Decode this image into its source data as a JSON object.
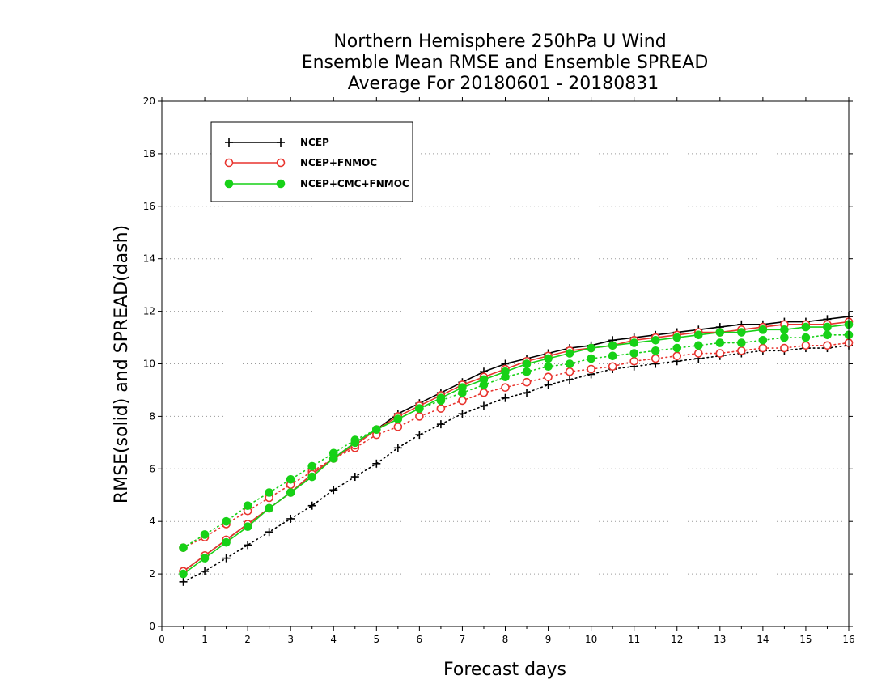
{
  "chart_data": {
    "type": "line",
    "title": [
      "Northern Hemisphere 250hPa U Wind",
      "Ensemble Mean RMSE and Ensemble SPREAD",
      "Average For 20180601 - 20180831"
    ],
    "xlabel": "Forecast days",
    "ylabel": "RMSE(solid) and SPREAD(dash)",
    "xlim": [
      0,
      16
    ],
    "ylim": [
      0,
      20
    ],
    "xticks": [
      "0",
      "1",
      "2",
      "3",
      "4",
      "5",
      "6",
      "7",
      "8",
      "9",
      "10",
      "11",
      "12",
      "13",
      "14",
      "15",
      "16"
    ],
    "yticks": [
      "0",
      "2",
      "4",
      "6",
      "8",
      "10",
      "12",
      "14",
      "16",
      "18",
      "20"
    ],
    "grid": true,
    "legend_position": "top-left",
    "x": [
      0.5,
      1.0,
      1.5,
      2.0,
      2.5,
      3.0,
      3.5,
      4.0,
      4.5,
      5.0,
      5.5,
      6.0,
      6.5,
      7.0,
      7.5,
      8.0,
      8.5,
      9.0,
      9.5,
      10.0,
      10.5,
      11.0,
      11.5,
      12.0,
      12.5,
      13.0,
      13.5,
      14.0,
      14.5,
      15.0,
      15.5,
      16.0
    ],
    "series": [
      {
        "name": "NCEP",
        "color": "#000000",
        "marker": "plus",
        "rmse": [
          2.1,
          2.7,
          3.3,
          3.9,
          4.5,
          5.1,
          5.8,
          6.4,
          7.0,
          7.5,
          8.1,
          8.5,
          8.9,
          9.3,
          9.7,
          10.0,
          10.2,
          10.4,
          10.6,
          10.7,
          10.9,
          11.0,
          11.1,
          11.2,
          11.3,
          11.4,
          11.5,
          11.5,
          11.6,
          11.6,
          11.7,
          11.8
        ],
        "spread": [
          1.7,
          2.1,
          2.6,
          3.1,
          3.6,
          4.1,
          4.6,
          5.2,
          5.7,
          6.2,
          6.8,
          7.3,
          7.7,
          8.1,
          8.4,
          8.7,
          8.9,
          9.2,
          9.4,
          9.6,
          9.8,
          9.9,
          10.0,
          10.1,
          10.2,
          10.3,
          10.4,
          10.5,
          10.5,
          10.6,
          10.6,
          10.7
        ]
      },
      {
        "name": "NCEP+FNMOC",
        "color": "#e8342e",
        "marker": "open-circle",
        "rmse": [
          2.1,
          2.7,
          3.3,
          3.9,
          4.5,
          5.1,
          5.8,
          6.4,
          6.9,
          7.5,
          8.0,
          8.4,
          8.8,
          9.2,
          9.5,
          9.8,
          10.1,
          10.3,
          10.5,
          10.6,
          10.7,
          10.9,
          11.0,
          11.1,
          11.2,
          11.2,
          11.3,
          11.4,
          11.5,
          11.5,
          11.5,
          11.6
        ],
        "spread": [
          3.0,
          3.4,
          3.9,
          4.4,
          4.9,
          5.4,
          5.9,
          6.4,
          6.8,
          7.3,
          7.6,
          8.0,
          8.3,
          8.6,
          8.9,
          9.1,
          9.3,
          9.5,
          9.7,
          9.8,
          9.9,
          10.1,
          10.2,
          10.3,
          10.4,
          10.4,
          10.5,
          10.6,
          10.6,
          10.7,
          10.7,
          10.8
        ]
      },
      {
        "name": "NCEP+CMC+FNMOC",
        "color": "#17d117",
        "marker": "filled-circle",
        "rmse": [
          2.0,
          2.6,
          3.2,
          3.8,
          4.5,
          5.1,
          5.7,
          6.4,
          7.0,
          7.5,
          7.9,
          8.3,
          8.7,
          9.1,
          9.4,
          9.7,
          10.0,
          10.2,
          10.4,
          10.6,
          10.7,
          10.8,
          10.9,
          11.0,
          11.1,
          11.2,
          11.2,
          11.3,
          11.3,
          11.4,
          11.4,
          11.5
        ],
        "spread": [
          3.0,
          3.5,
          4.0,
          4.6,
          5.1,
          5.6,
          6.1,
          6.6,
          7.1,
          7.5,
          7.9,
          8.3,
          8.6,
          8.9,
          9.2,
          9.5,
          9.7,
          9.9,
          10.0,
          10.2,
          10.3,
          10.4,
          10.5,
          10.6,
          10.7,
          10.8,
          10.8,
          10.9,
          11.0,
          11.0,
          11.1,
          11.1
        ]
      }
    ]
  }
}
